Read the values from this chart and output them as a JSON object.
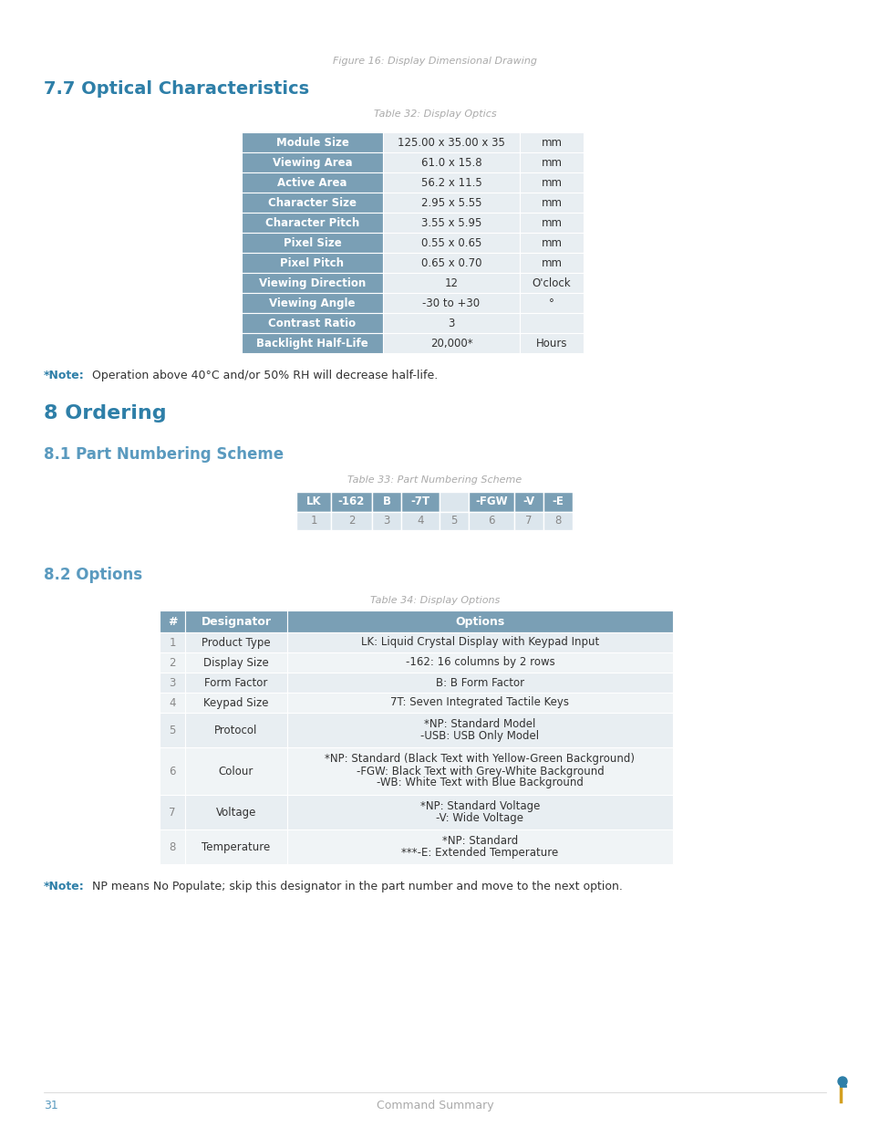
{
  "fig_caption": "Figure 16: Display Dimensional Drawing",
  "section_77_title": "7.7 Optical Characteristics",
  "table32_caption": "Table 32: Display Optics",
  "optics_rows": [
    [
      "Module Size",
      "125.00 x 35.00 x 35",
      "mm"
    ],
    [
      "Viewing Area",
      "61.0 x 15.8",
      "mm"
    ],
    [
      "Active Area",
      "56.2 x 11.5",
      "mm"
    ],
    [
      "Character Size",
      "2.95 x 5.55",
      "mm"
    ],
    [
      "Character Pitch",
      "3.55 x 5.95",
      "mm"
    ],
    [
      "Pixel Size",
      "0.55 x 0.65",
      "mm"
    ],
    [
      "Pixel Pitch",
      "0.65 x 0.70",
      "mm"
    ],
    [
      "Viewing Direction",
      "12",
      "O'clock"
    ],
    [
      "Viewing Angle",
      "-30 to +30",
      "°"
    ],
    [
      "Contrast Ratio",
      "3",
      ""
    ],
    [
      "Backlight Half-Life",
      "20,000*",
      "Hours"
    ]
  ],
  "section_8_title": "8 Ordering",
  "section_81_title": "8.1 Part Numbering Scheme",
  "table33_caption": "Table 33: Part Numbering Scheme",
  "pn_top": [
    "LK",
    "-162",
    "B",
    "-7T",
    "",
    "-FGW",
    "-V",
    "-E"
  ],
  "pn_bot": [
    "1",
    "2",
    "3",
    "4",
    "5",
    "6",
    "7",
    "8"
  ],
  "pn_highlight": [
    0,
    1,
    2,
    3,
    5,
    6,
    7
  ],
  "section_82_title": "8.2 Options",
  "table34_caption": "Table 34: Display Options",
  "options_header": [
    "#",
    "Designator",
    "Options"
  ],
  "options_rows": [
    [
      "1",
      "Product Type",
      "LK: Liquid Crystal Display with Keypad Input"
    ],
    [
      "2",
      "Display Size",
      "-162: 16 columns by 2 rows"
    ],
    [
      "3",
      "Form Factor",
      "B: B Form Factor"
    ],
    [
      "4",
      "Keypad Size",
      "7T: Seven Integrated Tactile Keys"
    ],
    [
      "5",
      "Protocol",
      "*NP: Standard Model\n-USB: USB Only Model"
    ],
    [
      "6",
      "Colour",
      "*NP: Standard (Black Text with Yellow-Green Background)\n-FGW: Black Text with Grey-White Background\n-WB: White Text with Blue Background"
    ],
    [
      "7",
      "Voltage",
      "*NP: Standard Voltage\n-V: Wide Voltage"
    ],
    [
      "8",
      "Temperature",
      "*NP: Standard\n***-E: Extended Temperature"
    ]
  ],
  "footer_page": "31",
  "footer_center": "Command Summary",
  "header_color": "#7a9fb5",
  "row_light_color": "#dce6ed",
  "row_even_color": "#e8eef2",
  "row_odd_color": "#f0f4f6",
  "bg_color": "#ffffff",
  "section_color": "#2e7fa8",
  "subsection_color": "#5a9abf",
  "note_star_color": "#2e7fa8",
  "pn_highlight_bg": "#7a9fb5",
  "pn_highlight_fg": "#ffffff",
  "pn_normal_bg": "#dce6ed",
  "pn_normal_fg": "#666666",
  "star_color_blue": "#2e7fa8",
  "footer_color": "#aaaaaa",
  "footer_page_color": "#5a9abf"
}
